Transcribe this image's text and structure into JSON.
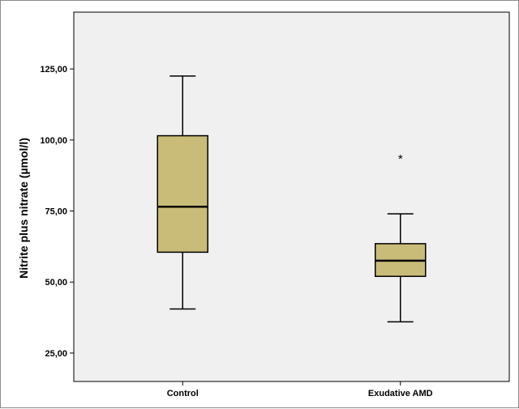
{
  "chart_data": {
    "type": "box",
    "title": "",
    "xlabel": "",
    "ylabel": "Nitrite plus nitrate (µmol/l)",
    "ylim": [
      15,
      145
    ],
    "yticks": [
      {
        "value": 25,
        "label": "25,00"
      },
      {
        "value": 50,
        "label": "50,00"
      },
      {
        "value": 75,
        "label": "75,00"
      },
      {
        "value": 100,
        "label": "100,00"
      },
      {
        "value": 125,
        "label": "125,00"
      }
    ],
    "categories": [
      "Control",
      "Exudative AMD"
    ],
    "boxes": [
      {
        "category": "Control",
        "min": 40.5,
        "q1": 60.5,
        "median": 76.5,
        "q3": 101.5,
        "max": 122.5,
        "outliers": []
      },
      {
        "category": "Exudative AMD",
        "min": 36,
        "q1": 52,
        "median": 57.5,
        "q3": 63.5,
        "max": 74,
        "outliers": [
          {
            "value": 94,
            "marker": "*"
          }
        ]
      }
    ],
    "grid": false,
    "colors": {
      "box_fill": "#c9bc78",
      "plot_bg": "#f0f0f0",
      "line": "#000000"
    }
  }
}
